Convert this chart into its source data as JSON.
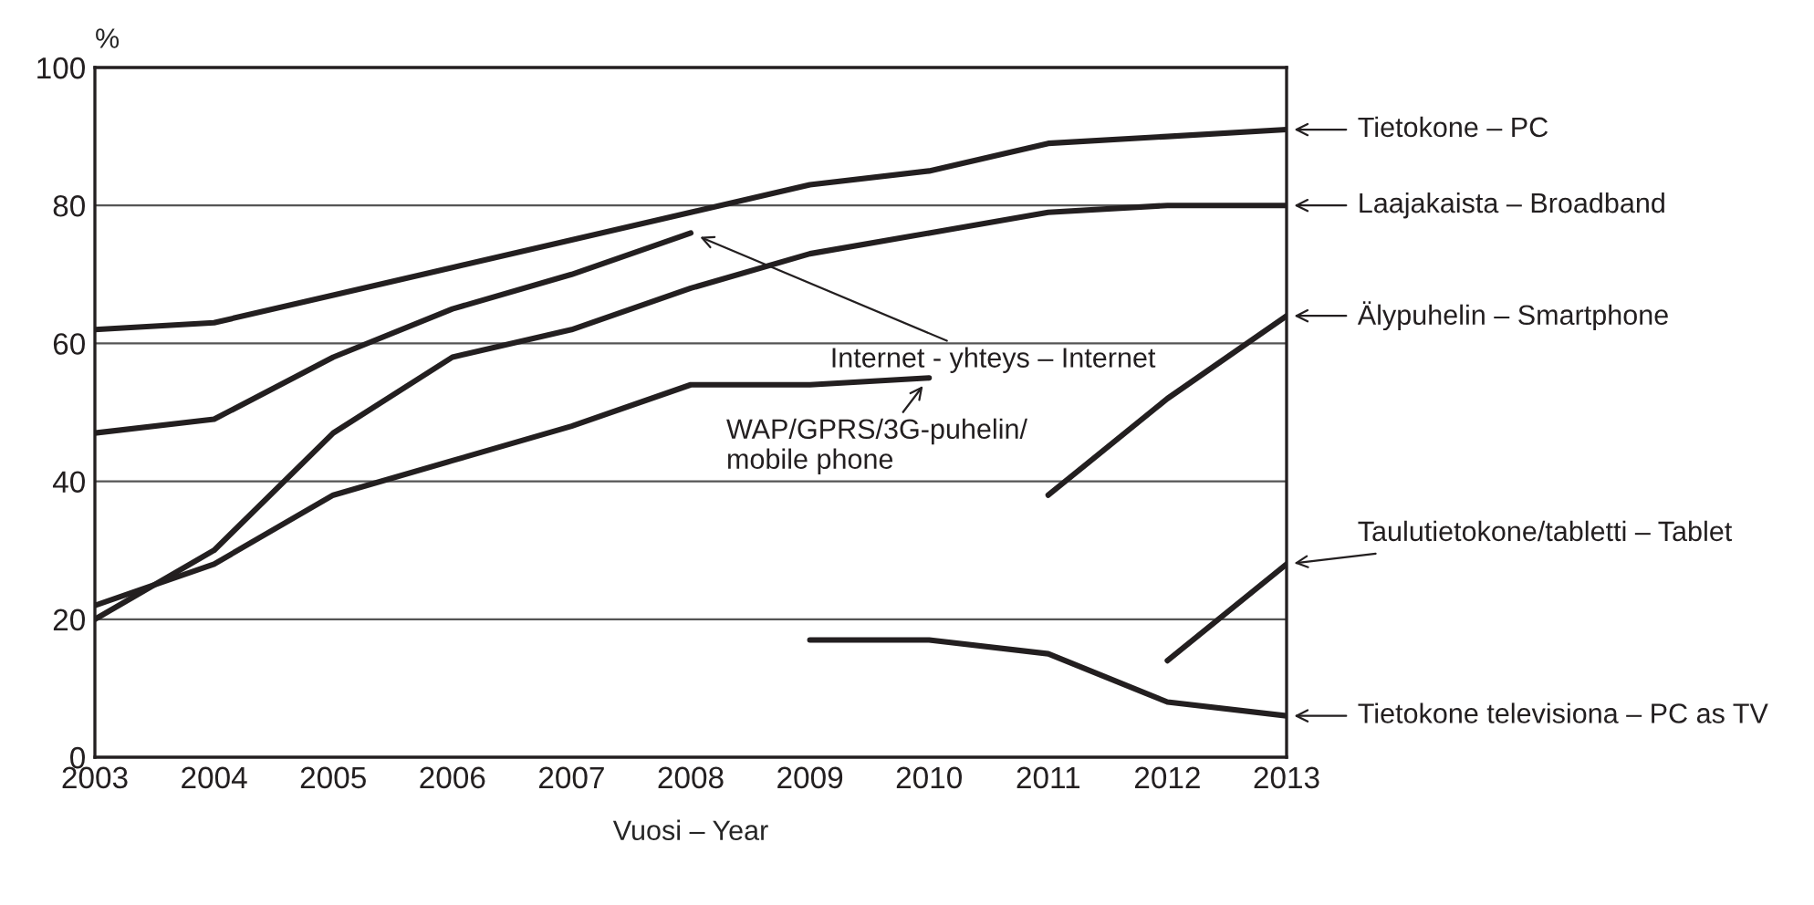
{
  "chart_data": {
    "type": "line",
    "ylabel": "%",
    "xlabel": "Vuosi – Year",
    "x": [
      2003,
      2004,
      2005,
      2006,
      2007,
      2008,
      2009,
      2010,
      2011,
      2012,
      2013
    ],
    "xlim": [
      2003,
      2013
    ],
    "xticks": [
      2003,
      2004,
      2005,
      2006,
      2007,
      2008,
      2009,
      2010,
      2011,
      2012,
      2013
    ],
    "ylim": [
      0,
      100
    ],
    "yticks": [
      0,
      20,
      40,
      60,
      80,
      100
    ],
    "grid": "y",
    "legend": "right",
    "marker": "none",
    "line_style": "solid",
    "series": [
      {
        "name": "Tietokone – PC",
        "color": "#231f20",
        "values": [
          62,
          63,
          67,
          71,
          75,
          79,
          83,
          85,
          89,
          90,
          91
        ]
      },
      {
        "name": "Internet - yhteys – Internet",
        "color": "#231f20",
        "values": [
          47,
          49,
          58,
          65,
          70,
          76,
          null,
          null,
          null,
          null,
          null
        ]
      },
      {
        "name": "Laajakaista – Broadband",
        "color": "#231f20",
        "values": [
          20,
          30,
          47,
          58,
          62,
          68,
          73,
          76,
          79,
          80,
          80
        ]
      },
      {
        "name": "WAP/GPRS/3G-puhelin/\nmobile phone",
        "color": "#231f20",
        "values": [
          22,
          28,
          38,
          43,
          48,
          54,
          54,
          55,
          null,
          null,
          null
        ]
      },
      {
        "name": "Älypuhelin – Smartphone",
        "color": "#231f20",
        "values": [
          null,
          null,
          null,
          null,
          null,
          null,
          null,
          null,
          38,
          52,
          64
        ]
      },
      {
        "name": "Taulutietokone/tabletti – Tablet",
        "color": "#231f20",
        "values": [
          null,
          null,
          null,
          null,
          null,
          null,
          null,
          null,
          null,
          14,
          28
        ]
      },
      {
        "name": "Tietokone televisiona – PC as TV",
        "color": "#231f20",
        "values": [
          null,
          null,
          null,
          null,
          null,
          null,
          17,
          17,
          15,
          8,
          6
        ]
      }
    ]
  }
}
